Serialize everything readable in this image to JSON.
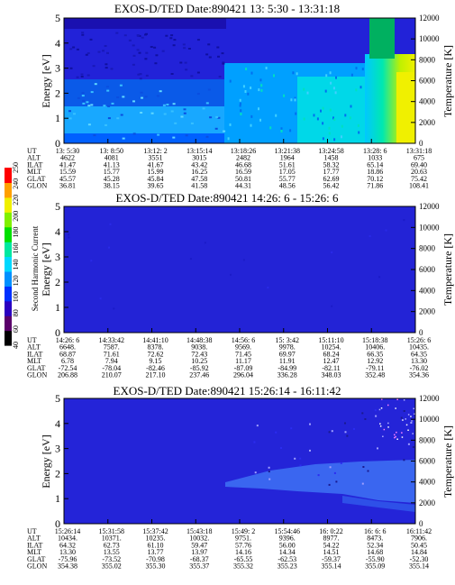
{
  "colors": {
    "background": "#2222d8",
    "colorbar": [
      "#000000",
      "#5a006a",
      "#2a00c0",
      "#0030ff",
      "#0090ff",
      "#00d8ff",
      "#00e8a0",
      "#00e000",
      "#80f000",
      "#f0f000",
      "#ffa000",
      "#ff0000"
    ]
  },
  "colorbar": {
    "label": "Second Harmonic Current",
    "ticks": [
      "40",
      "60",
      "80",
      "100",
      "120",
      "140",
      "160",
      "180",
      "200",
      "220",
      "240",
      "250"
    ]
  },
  "chart_data": [
    {
      "type": "heatmap",
      "title": "EXOS-D/TED   Date:890421   13: 5:30 - 13:31:18",
      "ylabel": "Energy [eV]",
      "y2label": "Temperature [K]",
      "ylim": [
        0,
        5
      ],
      "yticks": [
        "0",
        "1",
        "2",
        "3",
        "4",
        "5"
      ],
      "y2lim": [
        0,
        12000
      ],
      "y2ticks": [
        "0",
        "2000",
        "4000",
        "6000",
        "8000",
        "10000",
        "12000"
      ],
      "table_labels": [
        "UT",
        "ALT",
        "ILAT",
        "MLT",
        "GLAT",
        "GLON"
      ],
      "columns": [
        [
          "13: 5:30",
          "4622",
          "41.47",
          "15.59",
          "45.57",
          "36.81"
        ],
        [
          "13: 8:50",
          "4081",
          "41.13",
          "15.77",
          "45.28",
          "38.15"
        ],
        [
          "13:12: 2",
          "3551",
          "41.67",
          "15.99",
          "45.84",
          "39.65"
        ],
        [
          "13:15:14",
          "3015",
          "43.42",
          "16.25",
          "47.58",
          "41.58"
        ],
        [
          "13:18:26",
          "2482",
          "46.68",
          "16.59",
          "50.81",
          "44.31"
        ],
        [
          "13:21:38",
          "1964",
          "51.61",
          "17.05",
          "55.77",
          "48.56"
        ],
        [
          "13:24:58",
          "1458",
          "58.32",
          "17.77",
          "62.69",
          "56.42"
        ],
        [
          "13:28: 6",
          "1033",
          "65.14",
          "18.86",
          "70.12",
          "71.86"
        ],
        [
          "13:31:18",
          "675",
          "69.40",
          "20.63",
          "75.42",
          "108.41"
        ]
      ]
    },
    {
      "type": "heatmap",
      "title": "EXOS-D/TED   Date:890421   14:26: 6 - 15:26: 6",
      "ylabel": "Energy [eV]",
      "y2label": "Temperature [K]",
      "ylim": [
        0,
        5
      ],
      "yticks": [
        "0",
        "1",
        "2",
        "3",
        "4",
        "5"
      ],
      "y2lim": [
        0,
        12000
      ],
      "y2ticks": [
        "0",
        "2000",
        "4000",
        "6000",
        "8000",
        "10000",
        "12000"
      ],
      "table_labels": [
        "UT",
        "ALT",
        "ILAT",
        "MLT",
        "GLAT",
        "GLON"
      ],
      "columns": [
        [
          "14:26: 6",
          "6648.",
          "68.87",
          "6.78",
          "-72.54",
          "206.88"
        ],
        [
          "14:33:42",
          "7587.",
          "71.61",
          "7.94",
          "-78.04",
          "210.07"
        ],
        [
          "14:41:10",
          "8378.",
          "72.62",
          "9.15",
          "-82.46",
          "217.10"
        ],
        [
          "14:48:38",
          "9038.",
          "72.43",
          "10.25",
          "-85.92",
          "237.46"
        ],
        [
          "14:56: 6",
          "9569.",
          "71.45",
          "11.17",
          "-87.09",
          "296.04"
        ],
        [
          "15: 3:42",
          "9978.",
          "69.97",
          "11.91",
          "-84.99",
          "336.28"
        ],
        [
          "15:11:10",
          "10254.",
          "68.24",
          "12.47",
          "-82.11",
          "348.03"
        ],
        [
          "15:18:38",
          "10406.",
          "66.35",
          "12.92",
          "-79.11",
          "352.48"
        ],
        [
          "15:26: 6",
          "10435.",
          "64.35",
          "13.30",
          "-76.02",
          "354.36"
        ]
      ]
    },
    {
      "type": "heatmap",
      "title": "EXOS-D/TED   Date:890421   15:26:14 - 16:11:42",
      "ylabel": "Energy [eV]",
      "y2label": "Temperature [K]",
      "ylim": [
        0,
        5
      ],
      "yticks": [
        "0",
        "1",
        "2",
        "3",
        "4",
        "5"
      ],
      "y2lim": [
        0,
        12000
      ],
      "y2ticks": [
        "0",
        "2000",
        "4000",
        "6000",
        "8000",
        "10000",
        "12000"
      ],
      "table_labels": [
        "UT",
        "ALT",
        "ILAT",
        "MLT",
        "GLAT",
        "GLON"
      ],
      "columns": [
        [
          "15:26:14",
          "10434.",
          "64.32",
          "13.30",
          "-75.96",
          "354.38"
        ],
        [
          "15:31:58",
          "10371.",
          "62.73",
          "13.55",
          "-73.52",
          "355.02"
        ],
        [
          "15:37:42",
          "10235.",
          "61.10",
          "13.77",
          "-70.98",
          "355.30"
        ],
        [
          "15:43:18",
          "10032.",
          "59.47",
          "13.97",
          "-68.37",
          "355.37"
        ],
        [
          "15:49: 2",
          "9751.",
          "57.76",
          "14.16",
          "-65.55",
          "355.32"
        ],
        [
          "15:54:46",
          "9396.",
          "56.00",
          "14.34",
          "-62.53",
          "355.23"
        ],
        [
          "16: 0:22",
          "8977.",
          "54.22",
          "14.51",
          "-59.37",
          "355.14"
        ],
        [
          "16: 6: 6",
          "8473.",
          "52.34",
          "14.68",
          "-55.90",
          "355.09"
        ],
        [
          "16:11:42",
          "7906.",
          "50.45",
          "14.84",
          "-52.30",
          "355.14"
        ]
      ]
    }
  ]
}
